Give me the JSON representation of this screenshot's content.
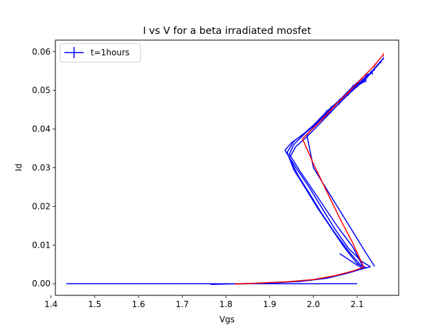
{
  "chart_data": {
    "type": "line",
    "title": "I vs V for a beta irradiated mosfet",
    "xlabel": "Vgs",
    "ylabel": "Id",
    "xlim": [
      1.41,
      2.195
    ],
    "ylim": [
      -0.003,
      0.063
    ],
    "x_ticks": [
      1.4,
      1.5,
      1.6,
      1.7,
      1.8,
      1.9,
      2.0,
      2.1
    ],
    "x_tick_labels": [
      "1.4",
      "1.5",
      "1.6",
      "1.7",
      "1.8",
      "1.9",
      "2.0",
      "2.1"
    ],
    "y_ticks": [
      0.0,
      0.01,
      0.02,
      0.03,
      0.04,
      0.05,
      0.06
    ],
    "y_tick_labels": [
      "0.00",
      "0.01",
      "0.02",
      "0.03",
      "0.04",
      "0.05",
      "0.06"
    ],
    "grid": false,
    "legend": {
      "position": "top-left",
      "entries": [
        {
          "label": "t=1hours",
          "color": "#0000ff",
          "marker": "errorbar"
        }
      ]
    },
    "series": [
      {
        "name": "t=1hours",
        "color": "#0000ff",
        "points": [
          [
            1.435,
            0.0
          ],
          [
            2.1,
            0.0
          ]
        ]
      },
      {
        "color": "#0000ff",
        "points": [
          [
            1.765,
            -0.0002
          ],
          [
            1.86,
            0.0001
          ],
          [
            1.93,
            0.0004
          ],
          [
            1.99,
            0.0009
          ],
          [
            2.04,
            0.0017
          ],
          [
            2.08,
            0.0028
          ],
          [
            2.11,
            0.0038
          ],
          [
            2.13,
            0.0044
          ],
          [
            2.11,
            0.0058
          ],
          [
            2.08,
            0.0092
          ],
          [
            2.05,
            0.014
          ],
          [
            2.02,
            0.0195
          ],
          [
            1.99,
            0.025
          ],
          [
            1.96,
            0.03
          ],
          [
            1.935,
            0.0345
          ],
          [
            1.95,
            0.0365
          ],
          [
            1.975,
            0.0385
          ],
          [
            2.0,
            0.041
          ],
          [
            2.03,
            0.0445
          ],
          [
            2.06,
            0.0475
          ],
          [
            2.09,
            0.051
          ],
          [
            2.12,
            0.054
          ],
          [
            2.135,
            0.0545
          ]
        ]
      },
      {
        "color": "#0000ff",
        "points": [
          [
            1.82,
            -0.0001
          ],
          [
            1.9,
            0.0002
          ],
          [
            1.97,
            0.0006
          ],
          [
            2.03,
            0.0014
          ],
          [
            2.07,
            0.0025
          ],
          [
            2.1,
            0.0036
          ],
          [
            2.12,
            0.0042
          ],
          [
            2.1,
            0.0052
          ],
          [
            2.07,
            0.0095
          ],
          [
            2.04,
            0.0145
          ],
          [
            2.01,
            0.0195
          ],
          [
            1.98,
            0.025
          ],
          [
            1.955,
            0.0295
          ],
          [
            1.94,
            0.034
          ],
          [
            1.955,
            0.0368
          ],
          [
            1.98,
            0.039
          ],
          [
            2.01,
            0.042
          ],
          [
            2.04,
            0.0455
          ],
          [
            2.07,
            0.0485
          ],
          [
            2.1,
            0.0515
          ],
          [
            2.13,
            0.0545
          ],
          [
            2.16,
            0.0583
          ]
        ]
      },
      {
        "color": "#0000ff",
        "points": [
          [
            2.06,
            0.0078
          ],
          [
            2.1,
            0.0048
          ],
          [
            2.115,
            0.004
          ],
          [
            2.09,
            0.0095
          ],
          [
            2.06,
            0.014
          ],
          [
            2.03,
            0.019
          ],
          [
            2.0,
            0.024
          ],
          [
            1.97,
            0.029
          ],
          [
            1.945,
            0.0335
          ],
          [
            1.955,
            0.036
          ],
          [
            1.98,
            0.0388
          ],
          [
            2.01,
            0.0418
          ],
          [
            2.05,
            0.0462
          ],
          [
            2.09,
            0.0505
          ],
          [
            2.12,
            0.0525
          ]
        ]
      },
      {
        "color": "#0000ff",
        "points": [
          [
            2.14,
            0.0045
          ],
          [
            2.12,
            0.008
          ],
          [
            2.09,
            0.0135
          ],
          [
            2.06,
            0.019
          ],
          [
            2.03,
            0.0245
          ],
          [
            2.0,
            0.03
          ],
          [
            1.985,
            0.0385
          ],
          [
            2.0,
            0.0405
          ],
          [
            2.04,
            0.0445
          ],
          [
            2.08,
            0.049
          ],
          [
            2.12,
            0.053
          ],
          [
            2.155,
            0.0575
          ]
        ]
      },
      {
        "color": "#0000ff",
        "points": [
          [
            2.11,
            0.0045
          ],
          [
            2.08,
            0.0085
          ],
          [
            2.05,
            0.013
          ],
          [
            2.02,
            0.018
          ],
          [
            1.99,
            0.0235
          ],
          [
            1.965,
            0.028
          ],
          [
            1.945,
            0.0325
          ],
          [
            1.96,
            0.0355
          ],
          [
            1.985,
            0.038
          ],
          [
            2.02,
            0.042
          ],
          [
            2.06,
            0.0468
          ],
          [
            2.1,
            0.0512
          ],
          [
            2.14,
            0.0555
          ]
        ]
      },
      {
        "color": "#ff0000",
        "points": [
          [
            1.82,
            -0.0001
          ],
          [
            1.88,
            0.0002
          ],
          [
            1.94,
            0.0005
          ],
          [
            2.0,
            0.0011
          ],
          [
            2.05,
            0.0021
          ],
          [
            2.09,
            0.0033
          ],
          [
            2.115,
            0.0043
          ],
          [
            2.09,
            0.0105
          ],
          [
            2.06,
            0.017
          ],
          [
            2.03,
            0.024
          ],
          [
            2.0,
            0.031
          ],
          [
            1.975,
            0.0375
          ],
          [
            1.99,
            0.0392
          ],
          [
            2.02,
            0.0425
          ],
          [
            2.05,
            0.0462
          ],
          [
            2.08,
            0.0495
          ],
          [
            2.11,
            0.053
          ],
          [
            2.14,
            0.0565
          ],
          [
            2.16,
            0.0593
          ]
        ]
      }
    ]
  }
}
